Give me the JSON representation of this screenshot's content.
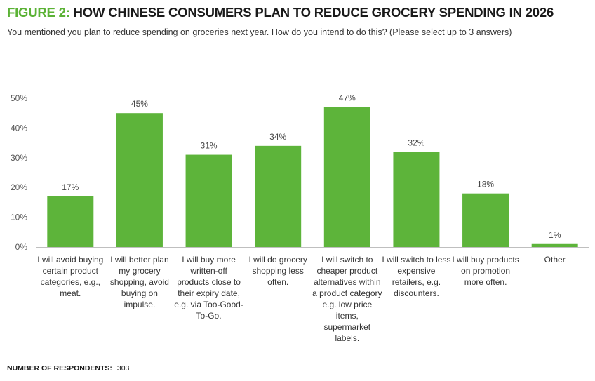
{
  "header": {
    "title_prefix": "FIGURE 2:",
    "title_main": "HOW CHINESE CONSUMERS PLAN TO REDUCE GROCERY SPENDING IN 2026",
    "subtitle": "You mentioned you plan to reduce spending on groceries next year. How do you intend to do this? (Please select up to 3 answers)"
  },
  "footer": {
    "respondents_label": "NUMBER OF RESPONDENTS:",
    "respondents_value": "303"
  },
  "colors": {
    "accent": "#5bb235",
    "bar": "#5db43a",
    "axis": "#bfbfbf",
    "text": "#333333"
  },
  "chart_data": {
    "type": "bar",
    "title": "HOW CHINESE CONSUMERS PLAN TO REDUCE GROCERY SPENDING IN 2026",
    "xlabel": "",
    "ylabel": "",
    "ylim": [
      0,
      50
    ],
    "yticks": [
      "0%",
      "10%",
      "20%",
      "30%",
      "40%",
      "50%"
    ],
    "grid": false,
    "categories": [
      "I will avoid buying certain product categories, e.g., meat.",
      "I will better plan my grocery shopping, avoid buying on impulse.",
      "I will buy more written-off products close to their expiry date, e.g. via Too-Good-To-Go.",
      "I will do grocery shopping less often.",
      "I will switch to cheaper product alternatives within a product category e.g. low price items, supermarket labels.",
      "I will switch to less expensive retailers, e.g. discounters.",
      "I will buy products on promotion more often.",
      "Other"
    ],
    "values": [
      17,
      45,
      31,
      34,
      47,
      32,
      18,
      1
    ],
    "data_labels": [
      "17%",
      "45%",
      "31%",
      "34%",
      "47%",
      "32%",
      "18%",
      "1%"
    ]
  }
}
